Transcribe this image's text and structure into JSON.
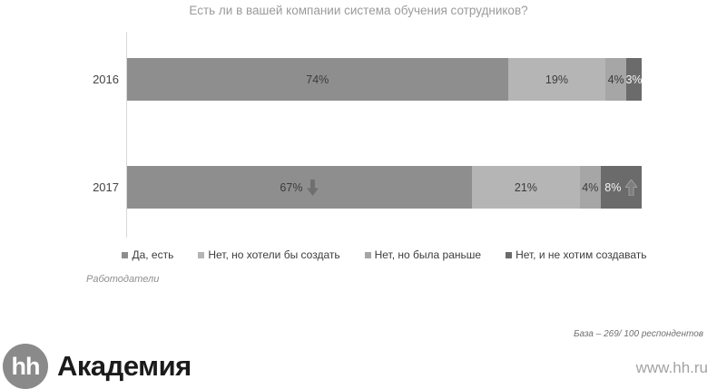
{
  "chart_data": {
    "type": "bar",
    "variant": "horizontal-stacked",
    "title": "Есть ли в вашей компании система обучения сотрудников?",
    "categories": [
      "2016",
      "2017"
    ],
    "series": [
      {
        "name": "Да, есть",
        "color": "#8e8e8e",
        "values": [
          74,
          67
        ]
      },
      {
        "name": "Нет, но хотели бы создать",
        "color": "#b5b5b5",
        "values": [
          19,
          21
        ]
      },
      {
        "name": "Нет, но была раньше",
        "color": "#a6a6a6",
        "values": [
          4,
          4
        ]
      },
      {
        "name": "Нет, и не хотим создавать",
        "color": "#6b6b6b",
        "values": [
          3,
          8
        ]
      }
    ],
    "value_label_format": "{value}%",
    "xlim": [
      0,
      100
    ],
    "legend_position": "bottom",
    "annotations": [
      {
        "category": "2017",
        "series": "Да, есть",
        "trend": "down"
      },
      {
        "category": "2017",
        "series": "Нет, и не хотим создавать",
        "trend": "up"
      }
    ]
  },
  "labels": {
    "audience": "Работодатели",
    "base_note": "База – 269/ 100 респондентов"
  },
  "footer": {
    "logo_text": "hh",
    "brand": "Академия",
    "site": "www.hh.ru"
  }
}
